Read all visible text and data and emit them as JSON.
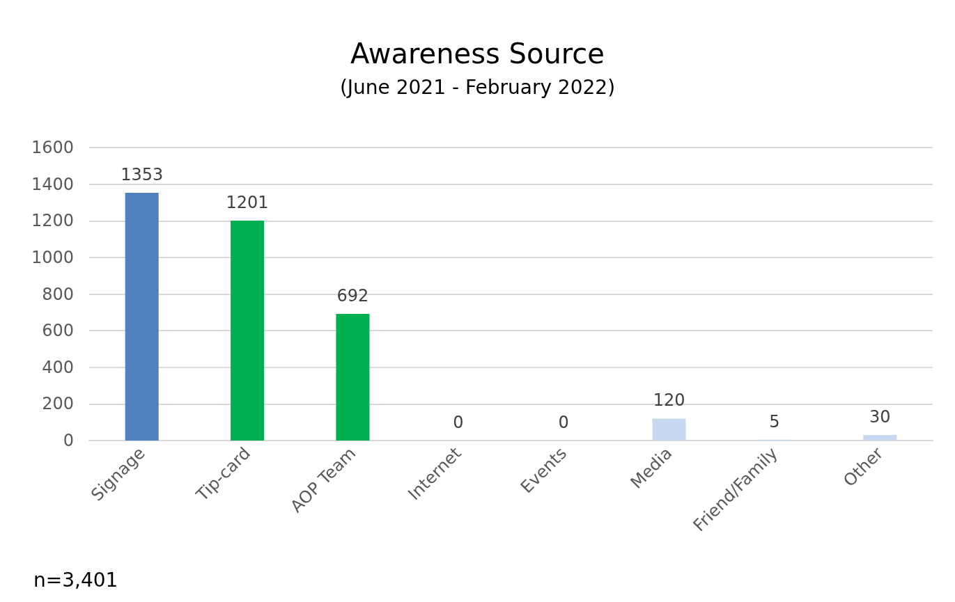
{
  "chart_data": {
    "type": "bar",
    "title": "Awareness Source",
    "subtitle": "(June 2021 - February 2022)",
    "categories": [
      "Signage",
      "Tip-card",
      "AOP Team",
      "Internet",
      "Events",
      "Media",
      "Friend/Family",
      "Other"
    ],
    "values": [
      1353,
      1201,
      692,
      0,
      0,
      120,
      5,
      30
    ],
    "colors": [
      "#4f81bd",
      "#00b050",
      "#00b050",
      "#c6d9f1",
      "#c6d9f1",
      "#c6d9f1",
      "#c6d9f1",
      "#c6d9f1"
    ],
    "ylim": [
      0,
      1600
    ],
    "yticks": [
      0,
      200,
      400,
      600,
      800,
      1000,
      1200,
      1400,
      1600
    ],
    "grid": true,
    "data_labels": true,
    "annotations": [
      "n=3,401"
    ]
  }
}
